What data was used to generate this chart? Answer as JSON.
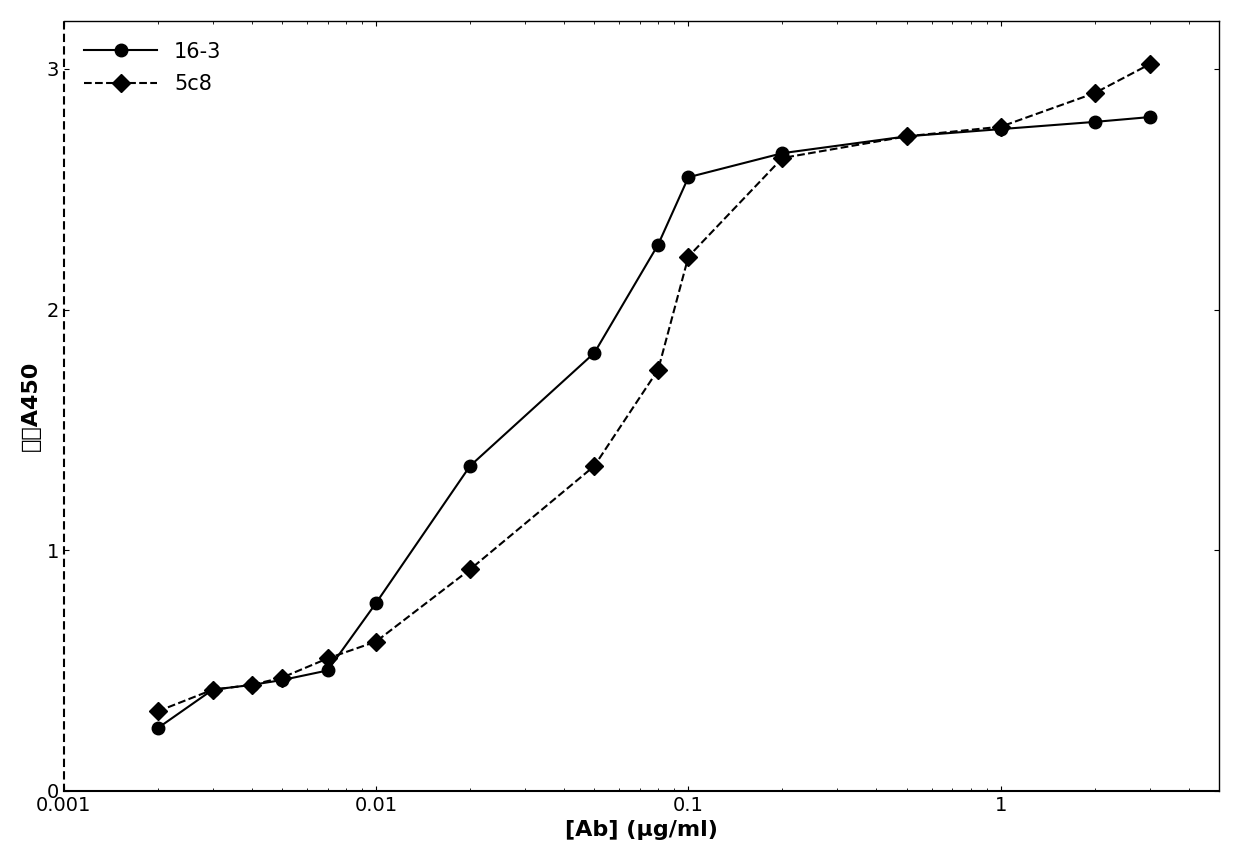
{
  "title": "",
  "xlabel": "[Ab] (μg/ml)",
  "ylabel": "平均A450",
  "ylim": [
    0,
    3.2
  ],
  "yticks": [
    0,
    1,
    2,
    3
  ],
  "xlim": [
    0.001,
    5.0
  ],
  "series_163": {
    "label": "16-3",
    "x": [
      0.002,
      0.003,
      0.004,
      0.005,
      0.007,
      0.01,
      0.02,
      0.05,
      0.08,
      0.1,
      0.2,
      0.5,
      1.0,
      2.0,
      3.0
    ],
    "y": [
      0.26,
      0.42,
      0.44,
      0.46,
      0.5,
      0.78,
      1.35,
      1.82,
      2.27,
      2.55,
      2.65,
      2.72,
      2.75,
      2.78,
      2.8
    ],
    "linestyle": "-",
    "marker": "o",
    "color": "#000000",
    "linewidth": 1.5,
    "markersize": 9
  },
  "series_5c8": {
    "label": "5c8",
    "x": [
      0.002,
      0.003,
      0.004,
      0.005,
      0.007,
      0.01,
      0.02,
      0.05,
      0.08,
      0.1,
      0.2,
      0.5,
      1.0,
      2.0,
      3.0
    ],
    "y": [
      0.33,
      0.42,
      0.44,
      0.47,
      0.55,
      0.62,
      0.92,
      1.35,
      1.75,
      2.22,
      2.63,
      2.72,
      2.76,
      2.9,
      3.02
    ],
    "linestyle": "--",
    "marker": "D",
    "color": "#000000",
    "linewidth": 1.5,
    "markersize": 9
  },
  "background_color": "#ffffff",
  "legend_loc": "upper left",
  "legend_fontsize": 15,
  "xlabel_fontsize": 16,
  "ylabel_fontsize": 16,
  "tick_labelsize": 14
}
